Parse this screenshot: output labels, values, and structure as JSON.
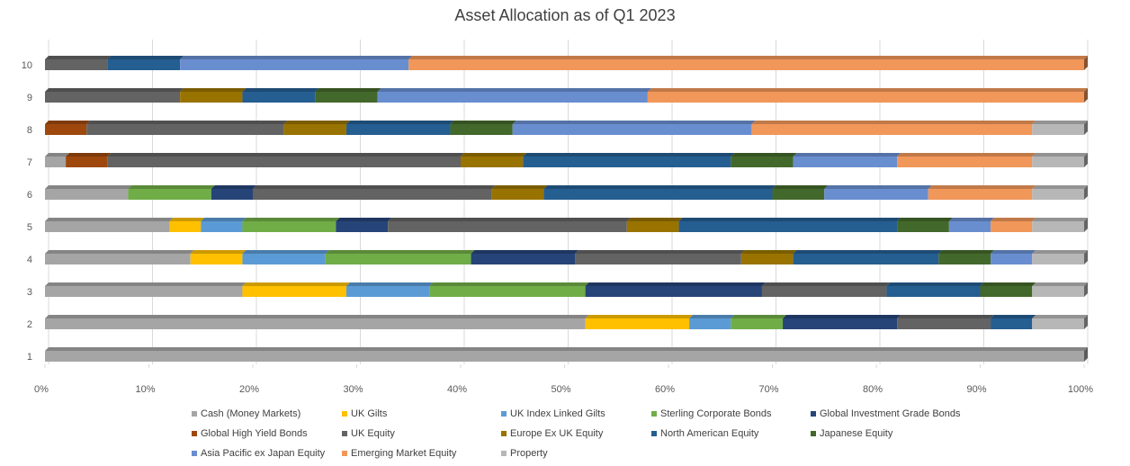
{
  "chart_data": {
    "type": "bar",
    "orientation": "horizontal",
    "stacked": "percent",
    "title": "Asset Allocation as of Q1 2023",
    "categories": [
      "1",
      "2",
      "3",
      "4",
      "5",
      "6",
      "7",
      "8",
      "9",
      "10"
    ],
    "xlim": [
      0,
      100
    ],
    "x_ticks": [
      "0%",
      "10%",
      "20%",
      "30%",
      "40%",
      "50%",
      "60%",
      "70%",
      "80%",
      "90%",
      "100%"
    ],
    "grid": true,
    "legend_position": "bottom",
    "series": [
      {
        "name": "Cash (Money Markets)",
        "color": "#A5A5A5",
        "values": [
          100,
          52,
          19,
          14,
          12,
          8,
          2,
          0,
          0,
          0
        ]
      },
      {
        "name": "UK Gilts",
        "color": "#FFC000",
        "values": [
          0,
          10,
          10,
          5,
          3,
          0,
          0,
          0,
          0,
          0
        ]
      },
      {
        "name": "UK Index Linked Gilts",
        "color": "#5B9BD5",
        "values": [
          0,
          4,
          8,
          8,
          4,
          0,
          0,
          0,
          0,
          0
        ]
      },
      {
        "name": "Sterling Corporate Bonds",
        "color": "#70AD47",
        "values": [
          0,
          5,
          15,
          14,
          9,
          8,
          0,
          0,
          0,
          0
        ]
      },
      {
        "name": "Global Investment Grade Bonds",
        "color": "#264478",
        "values": [
          0,
          11,
          17,
          10,
          5,
          4,
          0,
          0,
          0,
          0
        ]
      },
      {
        "name": "Global High Yield Bonds",
        "color": "#9E480E",
        "values": [
          0,
          0,
          0,
          0,
          0,
          0,
          4,
          4,
          0,
          0
        ]
      },
      {
        "name": "UK Equity",
        "color": "#636363",
        "values": [
          0,
          9,
          12,
          16,
          23,
          23,
          34,
          19,
          13,
          6
        ]
      },
      {
        "name": "Europe Ex UK Equity",
        "color": "#997300",
        "values": [
          0,
          0,
          0,
          5,
          5,
          5,
          6,
          6,
          6,
          0
        ]
      },
      {
        "name": "North American Equity",
        "color": "#255E91",
        "values": [
          0,
          4,
          9,
          14,
          21,
          22,
          20,
          10,
          7,
          7
        ]
      },
      {
        "name": "Japanese Equity",
        "color": "#43682B",
        "values": [
          0,
          0,
          5,
          5,
          5,
          5,
          6,
          6,
          6,
          0
        ]
      },
      {
        "name": "Asia Pacific ex Japan Equity",
        "color": "#698ED0",
        "values": [
          0,
          0,
          0,
          4,
          4,
          10,
          10,
          23,
          26,
          22
        ]
      },
      {
        "name": "Emerging Market Equity",
        "color": "#F1975A",
        "values": [
          0,
          0,
          0,
          0,
          4,
          10,
          13,
          27,
          42,
          65
        ]
      },
      {
        "name": "Property",
        "color": "#B7B7B7",
        "values": [
          0,
          5,
          5,
          5,
          5,
          5,
          5,
          5,
          0,
          0
        ]
      }
    ]
  }
}
